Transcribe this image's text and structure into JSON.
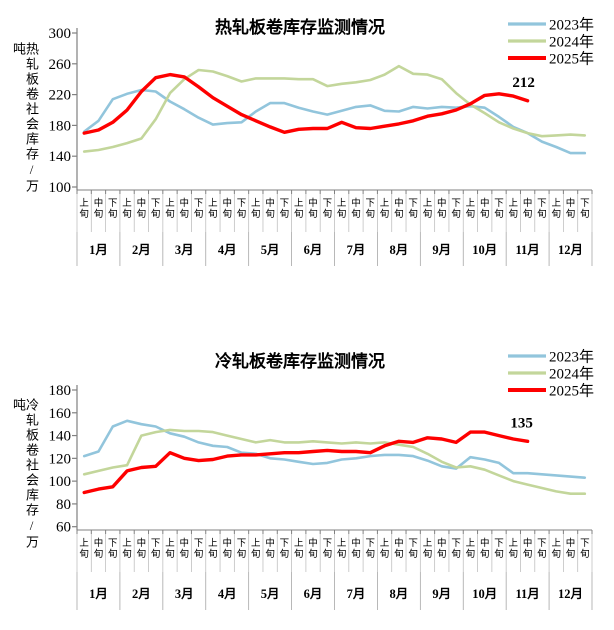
{
  "chart_data": [
    {
      "type": "line",
      "title": "热轧板卷库存监测情况",
      "ylabel": "热轧板卷社会库存/万吨",
      "ylim": [
        100,
        300
      ],
      "yticks": [
        300,
        260,
        220,
        180,
        140,
        100
      ],
      "months": [
        "1月",
        "2月",
        "3月",
        "4月",
        "5月",
        "6月",
        "7月",
        "8月",
        "9月",
        "10月",
        "11月",
        "12月"
      ],
      "periods": [
        "上旬",
        "中旬",
        "下旬"
      ],
      "grid": false,
      "legend_position": "top-right",
      "annotation": "212",
      "series": [
        {
          "name": "2023年",
          "color": "#92C5DC",
          "width": 2.6,
          "values": [
            172,
            186,
            214,
            221,
            226,
            224,
            211,
            201,
            190,
            181,
            183,
            184,
            198,
            209,
            209,
            203,
            198,
            194,
            199,
            204,
            206,
            199,
            198,
            204,
            202,
            204,
            203,
            205,
            203,
            191,
            178,
            170,
            159,
            152,
            144,
            144
          ]
        },
        {
          "name": "2024年",
          "color": "#C3D69B",
          "width": 2.6,
          "values": [
            146,
            148,
            152,
            157,
            163,
            188,
            222,
            240,
            252,
            250,
            244,
            237,
            241,
            241,
            241,
            240,
            240,
            231,
            234,
            236,
            239,
            246,
            257,
            247,
            246,
            240,
            222,
            207,
            196,
            184,
            176,
            170,
            166,
            167,
            168,
            167
          ]
        },
        {
          "name": "2025年",
          "color": "#FE0000",
          "width": 3.4,
          "values": [
            170,
            174,
            184,
            200,
            224,
            242,
            246,
            243,
            230,
            216,
            205,
            194,
            186,
            178,
            171,
            175,
            176,
            176,
            184,
            177,
            176,
            179,
            182,
            186,
            192,
            195,
            200,
            208,
            219,
            221,
            218,
            212
          ]
        }
      ]
    },
    {
      "type": "line",
      "title": "冷轧板卷库存监测情况",
      "ylabel": "冷轧板卷社会库存/万吨",
      "ylim": [
        60,
        180
      ],
      "yticks": [
        180,
        160,
        140,
        120,
        100,
        80,
        60
      ],
      "months": [
        "1月",
        "2月",
        "3月",
        "4月",
        "5月",
        "6月",
        "7月",
        "8月",
        "9月",
        "10月",
        "11月",
        "12月"
      ],
      "periods": [
        "上旬",
        "中旬",
        "下旬"
      ],
      "grid": false,
      "legend_position": "top-right",
      "annotation": "135",
      "series": [
        {
          "name": "2023年",
          "color": "#92C5DC",
          "width": 2.6,
          "values": [
            122,
            126,
            148,
            153,
            150,
            148,
            142,
            139,
            134,
            131,
            130,
            125,
            124,
            120,
            119,
            117,
            115,
            116,
            119,
            120,
            122,
            123,
            123,
            122,
            118,
            113,
            111,
            121,
            119,
            116,
            107,
            107,
            106,
            105,
            104,
            103
          ]
        },
        {
          "name": "2024年",
          "color": "#C3D69B",
          "width": 2.6,
          "values": [
            106,
            109,
            112,
            114,
            140,
            143,
            145,
            144,
            144,
            143,
            140,
            137,
            134,
            136,
            134,
            134,
            135,
            134,
            133,
            134,
            133,
            134,
            132,
            130,
            124,
            117,
            112,
            113,
            110,
            105,
            100,
            97,
            94,
            91,
            89,
            89
          ]
        },
        {
          "name": "2025年",
          "color": "#FE0000",
          "width": 3.4,
          "values": [
            90,
            93,
            95,
            109,
            112,
            113,
            125,
            120,
            118,
            119,
            122,
            123,
            123,
            124,
            125,
            125,
            126,
            127,
            126,
            126,
            125,
            131,
            135,
            134,
            138,
            137,
            134,
            143,
            143,
            140,
            137,
            135
          ]
        }
      ]
    }
  ]
}
